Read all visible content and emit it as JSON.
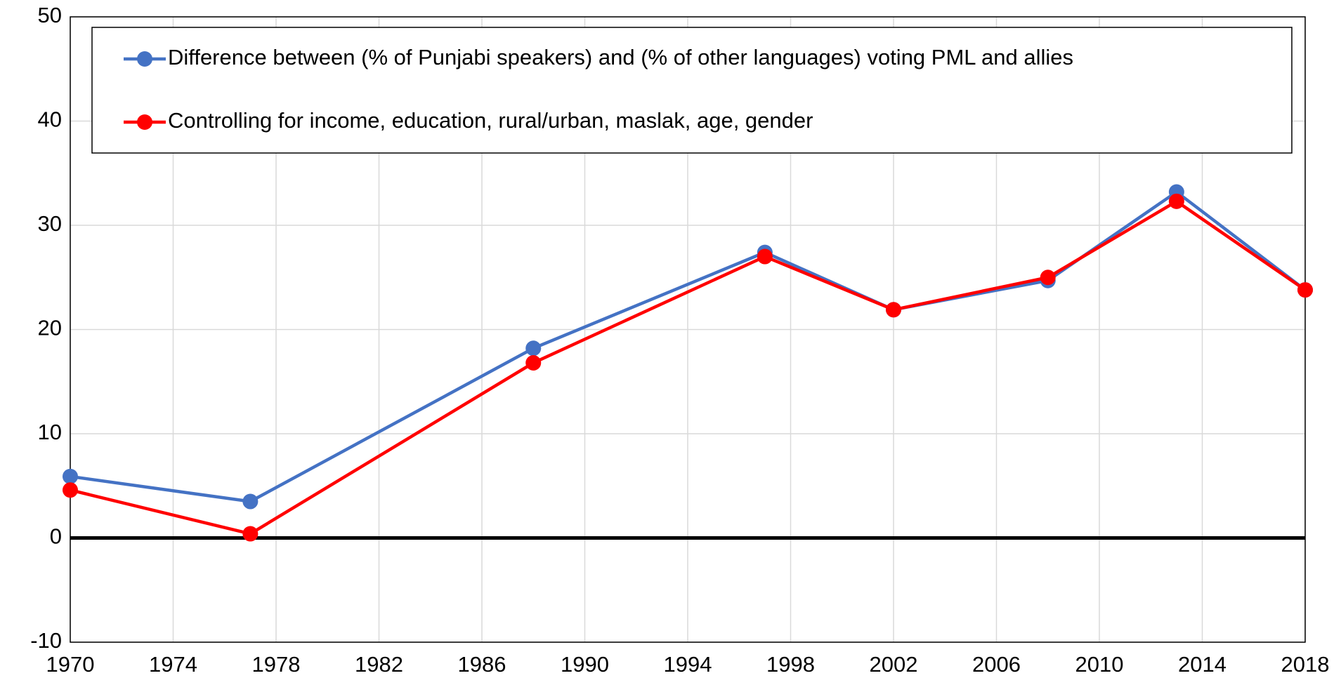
{
  "chart_data": {
    "type": "line",
    "x": [
      1970,
      1977,
      1988,
      1997,
      2002,
      2008,
      2013,
      2018
    ],
    "series": [
      {
        "name": "Difference between (% of Punjabi speakers) and (% of other languages) voting PML and allies",
        "color": "#4472c4",
        "values": [
          5.9,
          3.5,
          18.2,
          27.4,
          21.9,
          24.7,
          33.2,
          23.8
        ]
      },
      {
        "name": "Controlling for income, education, rural/urban, maslak, age, gender",
        "color": "#ff0000",
        "values": [
          4.6,
          0.4,
          16.8,
          27.0,
          21.9,
          25.0,
          32.3,
          23.8
        ]
      }
    ],
    "xlim": [
      1970,
      2018
    ],
    "xticks": [
      1970,
      1974,
      1978,
      1982,
      1986,
      1990,
      1994,
      1998,
      2002,
      2006,
      2010,
      2014,
      2018
    ],
    "ylim": [
      -10,
      50
    ],
    "yticks": [
      -10,
      0,
      10,
      20,
      30,
      40,
      50
    ],
    "grid": true,
    "legend": "upper left"
  }
}
